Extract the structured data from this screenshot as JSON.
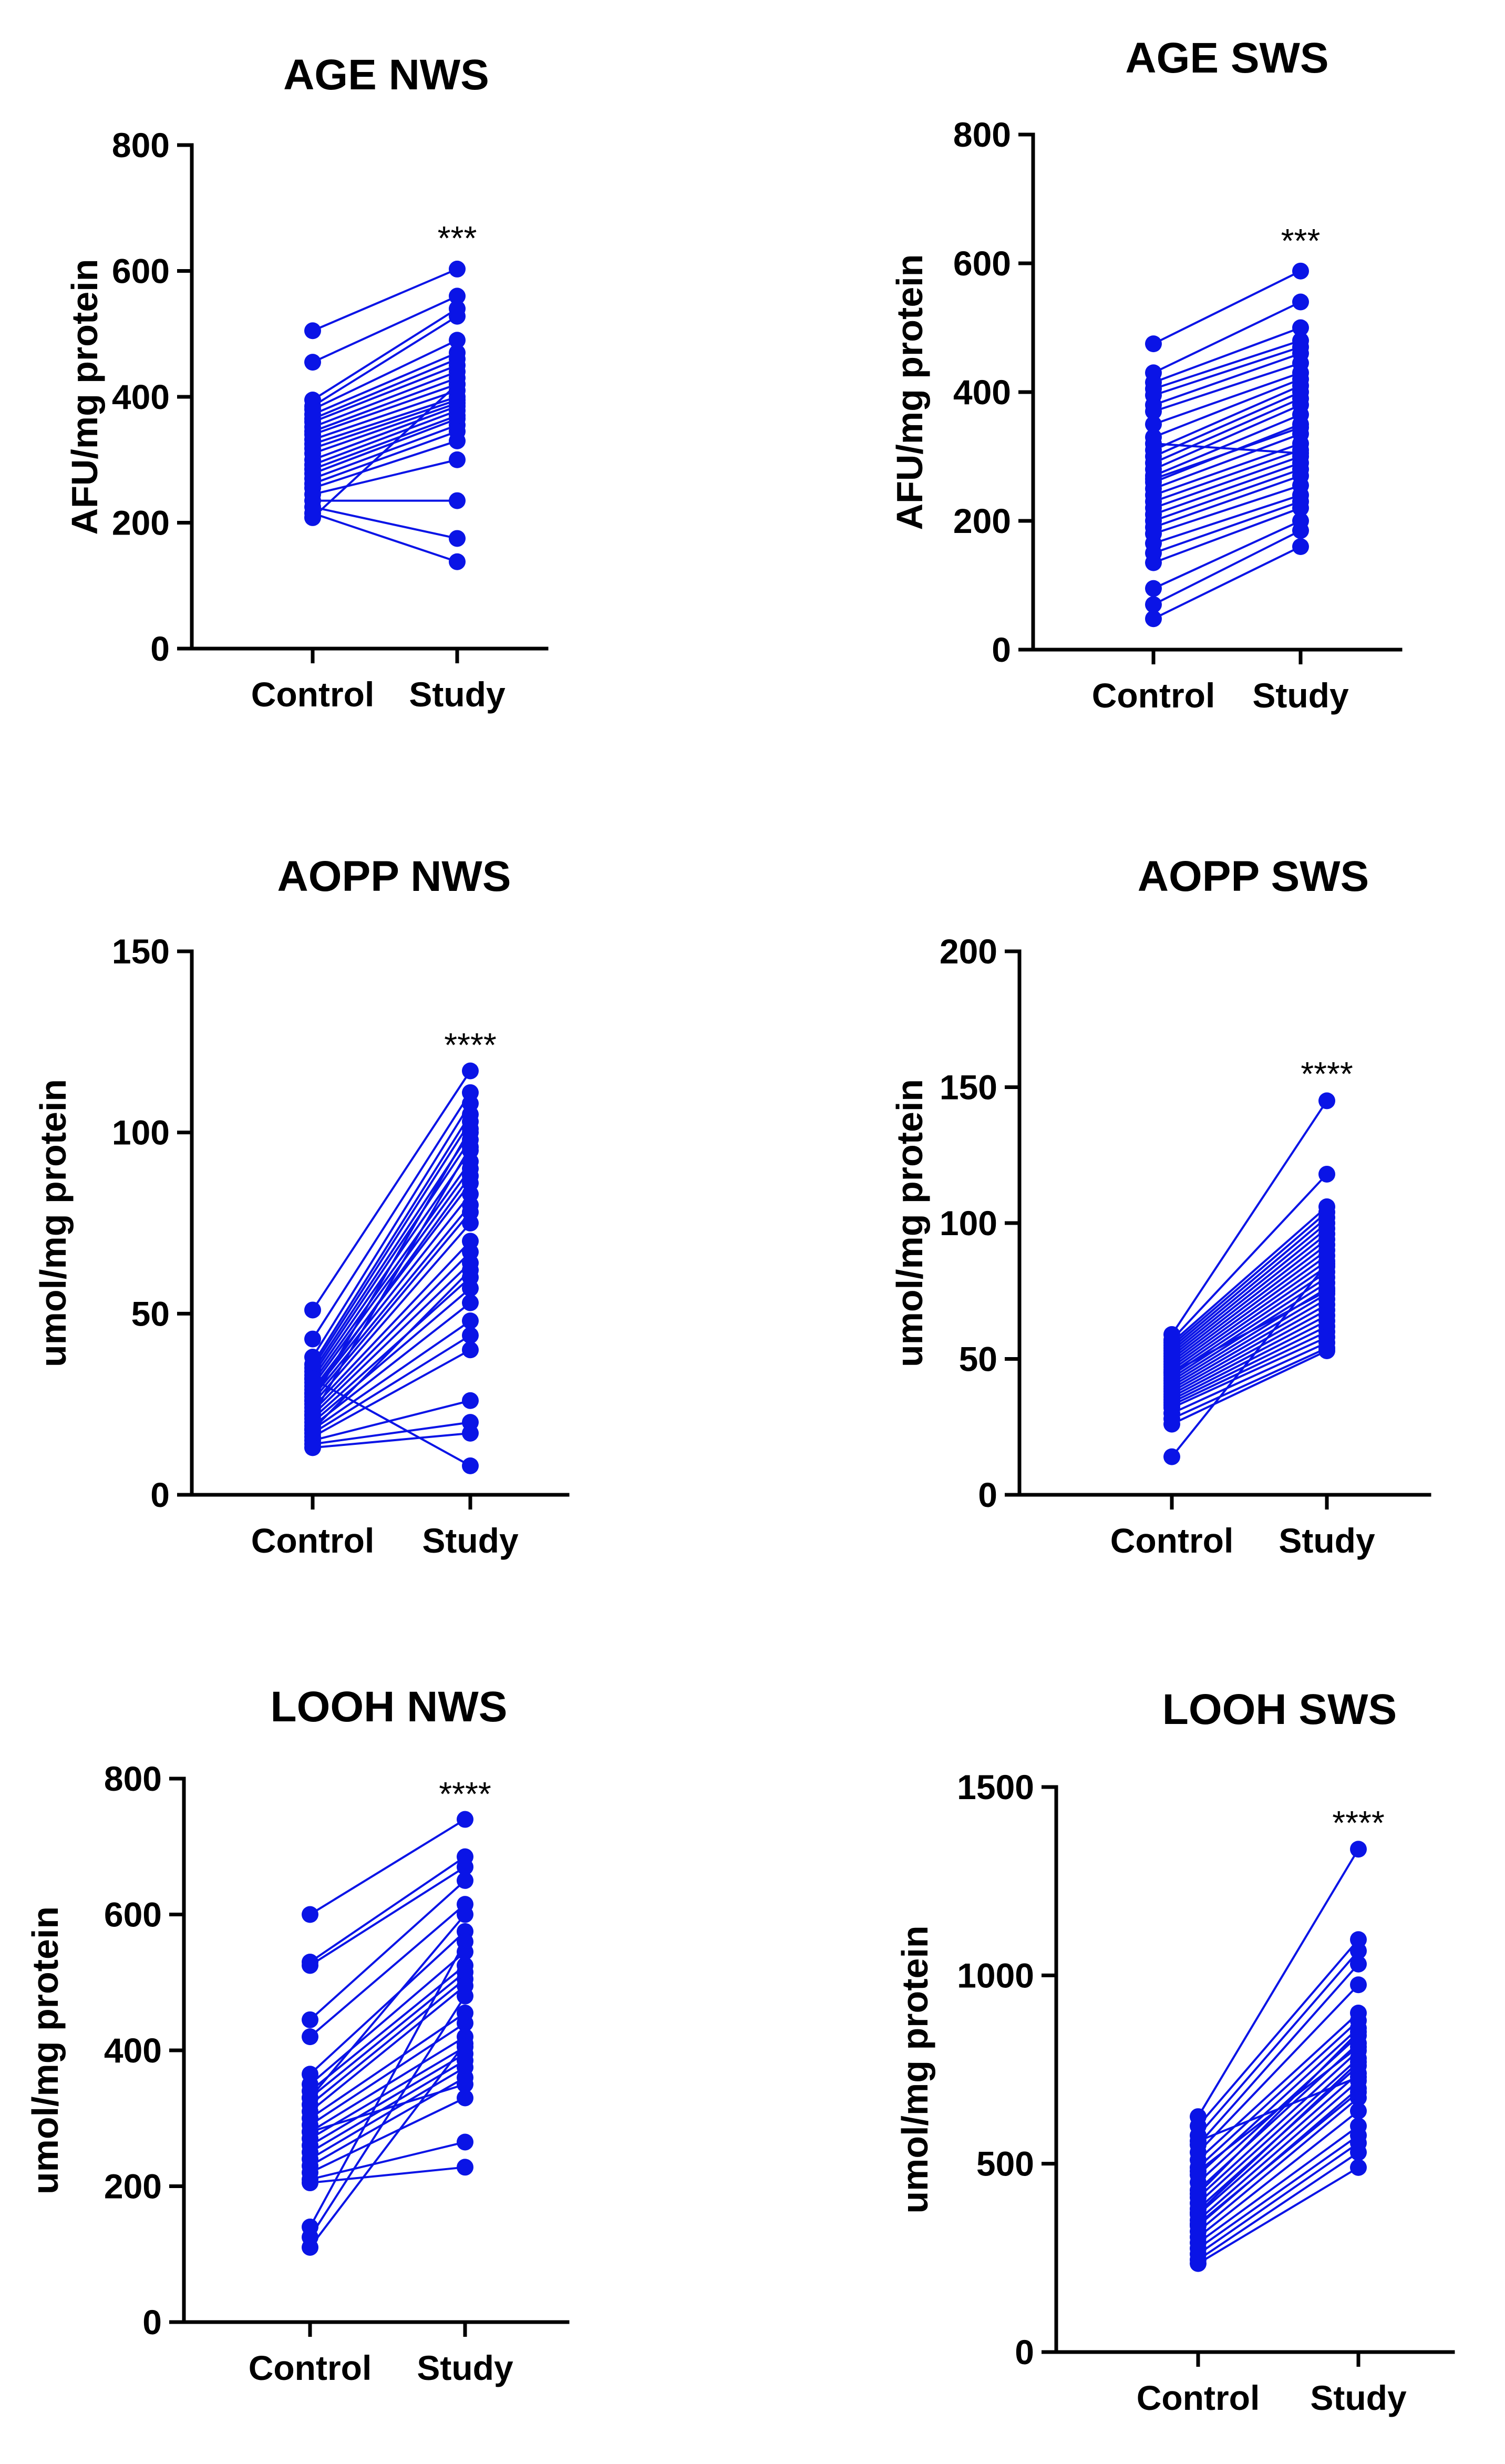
{
  "chart_data": [
    {
      "type": "scatter",
      "title": "AGE NWS",
      "ylabel": "AFU/mg protein",
      "categories": [
        "Control",
        "Study"
      ],
      "ylim": [
        0,
        800
      ],
      "yticks": [
        0,
        200,
        400,
        600,
        800
      ],
      "significance": "***",
      "series": [
        {
          "name": "Control",
          "values": [
            505,
            455,
            395,
            385,
            380,
            372,
            365,
            360,
            352,
            345,
            340,
            332,
            325,
            318,
            310,
            300,
            292,
            285,
            278,
            270,
            262,
            255,
            245,
            235,
            225,
            215,
            208
          ]
        },
        {
          "name": "Study",
          "values": [
            603,
            560,
            540,
            528,
            490,
            470,
            460,
            450,
            440,
            430,
            420,
            410,
            400,
            395,
            390,
            385,
            378,
            370,
            365,
            355,
            345,
            330,
            300,
            235,
            175,
            138,
            420
          ]
        }
      ]
    },
    {
      "type": "scatter",
      "title": "AGE SWS",
      "ylabel": "AFU/mg protein",
      "categories": [
        "Control",
        "Study"
      ],
      "ylim": [
        0,
        800
      ],
      "yticks": [
        0,
        200,
        400,
        600,
        800
      ],
      "significance": "***",
      "series": [
        {
          "name": "Control",
          "values": [
            475,
            430,
            415,
            405,
            395,
            380,
            370,
            350,
            330,
            310,
            300,
            290,
            280,
            270,
            260,
            250,
            240,
            230,
            220,
            210,
            200,
            190,
            180,
            165,
            150,
            135,
            95,
            70,
            48,
            320,
            265
          ]
        },
        {
          "name": "Study",
          "values": [
            588,
            540,
            500,
            480,
            470,
            460,
            445,
            430,
            420,
            410,
            400,
            390,
            380,
            365,
            350,
            335,
            320,
            310,
            300,
            290,
            280,
            270,
            255,
            240,
            230,
            220,
            200,
            185,
            160,
            305,
            345
          ]
        }
      ]
    },
    {
      "type": "scatter",
      "title": "AOPP NWS",
      "ylabel": "umol/mg protein",
      "categories": [
        "Control",
        "Study"
      ],
      "ylim": [
        0,
        150
      ],
      "yticks": [
        0,
        50,
        100,
        150
      ],
      "significance": "****",
      "series": [
        {
          "name": "Control",
          "values": [
            51,
            43,
            38,
            36,
            35,
            34,
            33,
            32,
            31,
            30,
            29,
            28,
            27,
            26,
            25,
            24,
            23,
            22,
            21,
            20,
            19,
            18,
            17,
            16,
            15,
            14,
            13,
            32,
            26,
            22,
            18,
            28
          ]
        },
        {
          "name": "Study",
          "values": [
            117,
            111,
            108,
            105,
            103,
            100,
            98,
            95,
            92,
            90,
            86,
            83,
            80,
            78,
            75,
            70,
            67,
            64,
            60,
            57,
            53,
            48,
            44,
            40,
            26,
            20,
            17,
            8,
            101,
            96,
            62,
            88
          ]
        }
      ]
    },
    {
      "type": "scatter",
      "title": "AOPP SWS",
      "ylabel": "umol/mg protein",
      "categories": [
        "Control",
        "Study"
      ],
      "ylim": [
        0,
        200
      ],
      "yticks": [
        0,
        50,
        100,
        150,
        200
      ],
      "significance": "****",
      "series": [
        {
          "name": "Control",
          "values": [
            59,
            57,
            56,
            55,
            54,
            53,
            52,
            51,
            50,
            49,
            48,
            47,
            46,
            45,
            44,
            43,
            42,
            41,
            40,
            39,
            38,
            37,
            36,
            35,
            34,
            33,
            32,
            30,
            28,
            26,
            14,
            45
          ]
        },
        {
          "name": "Study",
          "values": [
            145,
            118,
            106,
            104,
            102,
            100,
            98,
            96,
            94,
            92,
            90,
            88,
            86,
            84,
            82,
            80,
            78,
            76,
            74,
            72,
            70,
            68,
            66,
            64,
            62,
            60,
            58,
            56,
            54,
            53,
            85,
            75
          ]
        }
      ]
    },
    {
      "type": "scatter",
      "title": "LOOH NWS",
      "ylabel": "umol/mg protein",
      "categories": [
        "Control",
        "Study"
      ],
      "ylim": [
        0,
        800
      ],
      "yticks": [
        0,
        200,
        400,
        600,
        800
      ],
      "significance": "****",
      "series": [
        {
          "name": "Control",
          "values": [
            600,
            530,
            525,
            445,
            420,
            365,
            350,
            340,
            330,
            320,
            310,
            300,
            290,
            280,
            270,
            260,
            250,
            240,
            230,
            220,
            210,
            205,
            140,
            125,
            110,
            330,
            280
          ]
        },
        {
          "name": "Study",
          "values": [
            740,
            685,
            670,
            650,
            615,
            575,
            545,
            525,
            515,
            505,
            495,
            455,
            440,
            420,
            405,
            395,
            385,
            375,
            360,
            330,
            265,
            228,
            560,
            480,
            410,
            600,
            350
          ]
        }
      ]
    },
    {
      "type": "scatter",
      "title": "LOOH SWS",
      "ylabel": "umol/mg protein",
      "categories": [
        "Control",
        "Study"
      ],
      "ylim": [
        0,
        1500
      ],
      "yticks": [
        0,
        500,
        1000,
        1500
      ],
      "significance": "****",
      "series": [
        {
          "name": "Control",
          "values": [
            625,
            600,
            575,
            550,
            530,
            510,
            490,
            470,
            450,
            430,
            410,
            395,
            380,
            365,
            350,
            335,
            320,
            305,
            290,
            275,
            260,
            245,
            235,
            480,
            420,
            370,
            560,
            340
          ]
        },
        {
          "name": "Study",
          "values": [
            1335,
            1095,
            1065,
            1030,
            975,
            900,
            880,
            860,
            840,
            820,
            800,
            780,
            760,
            740,
            720,
            700,
            675,
            640,
            600,
            575,
            555,
            530,
            490,
            810,
            850,
            770,
            730,
            690
          ]
        }
      ]
    }
  ]
}
